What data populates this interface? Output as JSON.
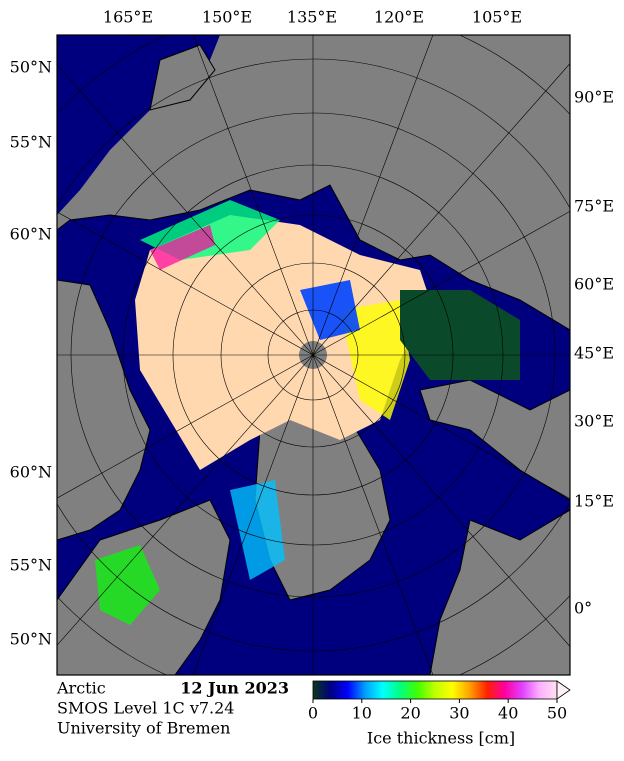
{
  "map": {
    "top_labels": [
      "165°E",
      "150°E",
      "135°E",
      "120°E",
      "105°E"
    ],
    "left_labels": [
      "50°N",
      "55°N",
      "60°N",
      "60°N",
      "55°N",
      "50°N"
    ],
    "right_labels": [
      "90°E",
      "75°E",
      "60°E",
      "45°E",
      "30°E",
      "15°E",
      "0°"
    ]
  },
  "footer": {
    "region": "Arctic",
    "date": "12 Jun 2023",
    "product": "SMOS Level 1C v7.24",
    "institution": "University of Bremen"
  },
  "colorbar": {
    "label": "Ice thickness [cm]",
    "range": [
      0,
      50
    ],
    "ticks": [
      0,
      10,
      20,
      30,
      40,
      50
    ],
    "colors": [
      "#0a3a1a",
      "#000080",
      "#0000ff",
      "#00a0ff",
      "#00ffff",
      "#00ff80",
      "#40ff00",
      "#c0ff00",
      "#ffff00",
      "#ffa000",
      "#ff2000",
      "#ff00a0",
      "#e040ff",
      "#ffb0ff",
      "#ffe0f0"
    ]
  }
}
